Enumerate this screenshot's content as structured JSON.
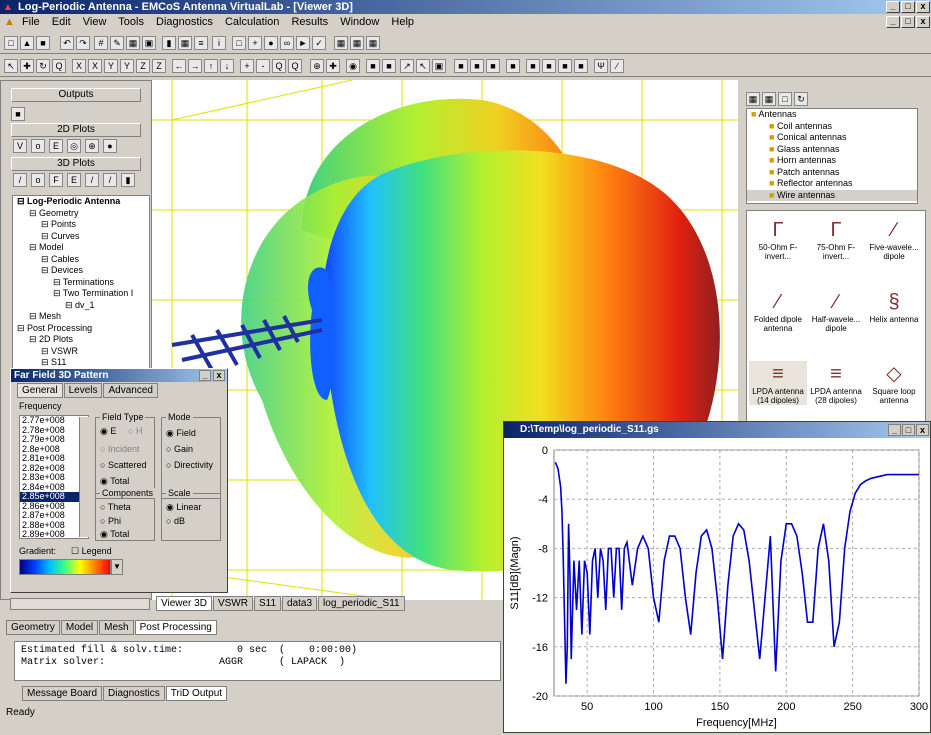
{
  "window": {
    "title": "Log-Periodic Antenna - EMCoS Antenna VirtualLab - [Viewer 3D]"
  },
  "menu": [
    "File",
    "Edit",
    "View",
    "Tools",
    "Diagnostics",
    "Calculation",
    "Results",
    "Window",
    "Help"
  ],
  "left": {
    "outputs_label": "Outputs",
    "plots2d_label": "2D Plots",
    "plots3d_label": "3D Plots",
    "tree": [
      {
        "label": "Log-Periodic Antenna",
        "indent": 0,
        "bold": true
      },
      {
        "label": "Geometry",
        "indent": 1
      },
      {
        "label": "Points",
        "indent": 2
      },
      {
        "label": "Curves",
        "indent": 2
      },
      {
        "label": "Model",
        "indent": 1
      },
      {
        "label": "Cables",
        "indent": 2
      },
      {
        "label": "Devices",
        "indent": 2
      },
      {
        "label": "Terminations",
        "indent": 3
      },
      {
        "label": "Two Termination I",
        "indent": 3
      },
      {
        "label": "dv_1",
        "indent": 4
      },
      {
        "label": "Mesh",
        "indent": 1
      },
      {
        "label": "Post Processing",
        "indent": 0
      },
      {
        "label": "2D Plots",
        "indent": 1
      },
      {
        "label": "VSWR",
        "indent": 2
      },
      {
        "label": "S11",
        "indent": 2
      }
    ]
  },
  "dialog": {
    "title": "Far Field 3D Pattern",
    "tabs": [
      "General",
      "Levels",
      "Advanced"
    ],
    "frequency_label": "Frequency",
    "frequencies": [
      "2.77e+008",
      "2.78e+008",
      "2.79e+008",
      "2.8e+008",
      "2.81e+008",
      "2.82e+008",
      "2.83e+008",
      "2.84e+008",
      "2.85e+008",
      "2.86e+008",
      "2.87e+008",
      "2.88e+008",
      "2.89e+008"
    ],
    "selected_frequency": "2.85e+008",
    "field_type_label": "Field Type",
    "field_e": "E",
    "field_h": "H",
    "incident": "Incident",
    "scattered": "Scattered",
    "total": "Total",
    "mode_label": "Mode",
    "mode_field": "Field",
    "mode_gain": "Gain",
    "mode_directivity": "Directivity",
    "components_label": "Components",
    "comp_theta": "Theta",
    "comp_phi": "Phi",
    "comp_total": "Total",
    "scale_label": "Scale",
    "scale_linear": "Linear",
    "scale_db": "dB",
    "gradient_label": "Gradient:",
    "legend_label": "Legend"
  },
  "view_tabs": [
    "Viewer 3D",
    "VSWR",
    "S11",
    "data3",
    "log_periodic_S11"
  ],
  "nav_tabs": [
    "Geometry",
    "Model",
    "Mesh",
    "Post Processing"
  ],
  "output": {
    "line1": "Estimated fill & solv.time:         0 sec  (    0:00:00)",
    "line2": "Matrix solver:                   AGGR      ( LAPACK  )"
  },
  "output_tabs": [
    "Message Board",
    "Diagnostics",
    "TriD Output"
  ],
  "status": "Ready",
  "right": {
    "tree": [
      {
        "label": "Antennas",
        "indent": 0
      },
      {
        "label": "Coil antennas",
        "indent": 1
      },
      {
        "label": "Conical antennas",
        "indent": 1
      },
      {
        "label": "Glass antennas",
        "indent": 1
      },
      {
        "label": "Horn antennas",
        "indent": 1
      },
      {
        "label": "Patch antennas",
        "indent": 1
      },
      {
        "label": "Reflector antennas",
        "indent": 1
      },
      {
        "label": "Wire antennas",
        "indent": 1
      }
    ],
    "gallery": [
      {
        "label": "50-Ohm F-invert...",
        "icon": "f-inverted-icon"
      },
      {
        "label": "75-Ohm F-invert...",
        "icon": "f-inverted-icon"
      },
      {
        "label": "Five-wavele... dipole",
        "icon": "dipole-icon"
      },
      {
        "label": "Folded dipole antenna",
        "icon": "folded-dipole-icon"
      },
      {
        "label": "Half-wavele... dipole",
        "icon": "dipole-icon"
      },
      {
        "label": "Helix antenna",
        "icon": "helix-icon"
      },
      {
        "label": "LPDA antenna (14 dipoles)",
        "icon": "lpda-icon"
      },
      {
        "label": "LPDA antenna (28 dipoles)",
        "icon": "lpda-icon"
      },
      {
        "label": "Square loop antenna",
        "icon": "square-loop-icon"
      },
      {
        "label": "V antenna",
        "icon": "v-antenna-icon"
      },
      {
        "label": "Yagi-Uda antenna...",
        "icon": "yagi-icon"
      }
    ],
    "lpda14": "14",
    "lpda28": "28"
  },
  "plot_window": {
    "title": "D:\\Temp\\log_periodic_S11.gs"
  },
  "chart_data": {
    "type": "line",
    "xlabel": "Frequency[MHz]",
    "ylabel": "S11[dB](Magn)",
    "xlim": [
      25,
      300
    ],
    "ylim": [
      -20,
      0
    ],
    "xticks": [
      50,
      100,
      150,
      200,
      250,
      300
    ],
    "yticks": [
      0,
      -4,
      -8,
      -12,
      -16,
      -20
    ],
    "grid": true,
    "series": [
      {
        "color": "#0000cc",
        "x": [
          26,
          28,
          30,
          31,
          32,
          33,
          34,
          35,
          36,
          37,
          38,
          40,
          42,
          44,
          46,
          48,
          50,
          52,
          54,
          56,
          58,
          60,
          62,
          64,
          66,
          68,
          70,
          72,
          74,
          76,
          78,
          80,
          84,
          88,
          92,
          96,
          100,
          104,
          108,
          112,
          116,
          120,
          124,
          128,
          132,
          136,
          140,
          144,
          148,
          152,
          156,
          160,
          164,
          168,
          172,
          176,
          180,
          184,
          188,
          192,
          196,
          200,
          204,
          208,
          212,
          216,
          220,
          224,
          228,
          232,
          236,
          240,
          244,
          248,
          252,
          256,
          260,
          264,
          268,
          272,
          276,
          280,
          284,
          288,
          292,
          296,
          300
        ],
        "y": [
          -1,
          -1.5,
          -3,
          -5,
          -9,
          -14,
          -19,
          -16,
          -6,
          -10,
          -17,
          -9,
          -13,
          -9,
          -15,
          -9,
          -10,
          -15,
          -9,
          -8,
          -12,
          -8,
          -9,
          -13,
          -8,
          -8,
          -12,
          -8,
          -8,
          -13,
          -8,
          -7.5,
          -11,
          -8,
          -7,
          -8,
          -12,
          -14,
          -9,
          -7,
          -7,
          -8,
          -12,
          -15,
          -10,
          -7,
          -6.5,
          -8,
          -12,
          -17,
          -11,
          -7,
          -6,
          -6.5,
          -9,
          -13,
          -17,
          -12,
          -7,
          -18,
          -9,
          -6,
          -6,
          -7,
          -10,
          -14,
          -14,
          -8,
          -6,
          -9,
          -16,
          -14,
          -8,
          -5,
          -3.5,
          -2.8,
          -2.5,
          -2.3,
          -2.2,
          -2.1,
          -2,
          -2,
          -2,
          -2,
          -2,
          -2,
          -2
        ]
      }
    ]
  }
}
